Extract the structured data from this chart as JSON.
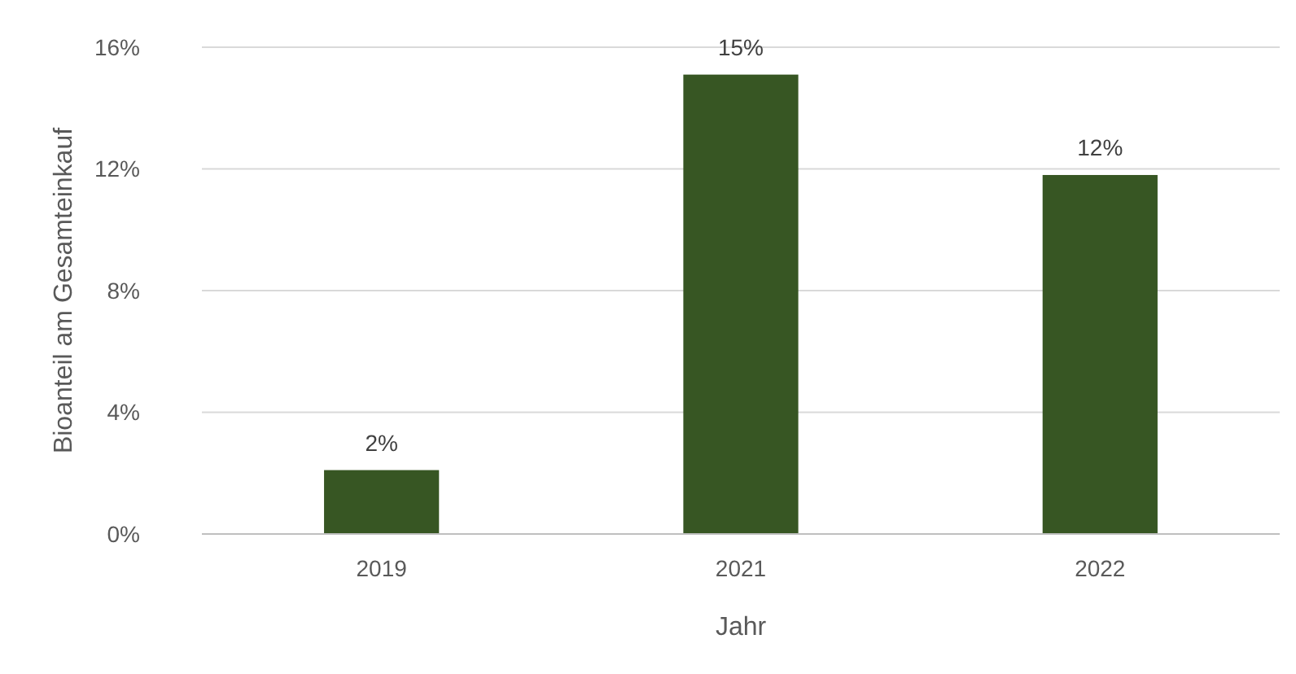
{
  "chart_data": {
    "type": "bar",
    "xlabel": "Jahr",
    "ylabel": "Bioanteil am Gesamteinkauf",
    "categories": [
      "2019",
      "2021",
      "2022"
    ],
    "values": [
      2.1,
      15.1,
      11.8
    ],
    "color": "#375623",
    "value_labels": [
      "2%",
      "15%",
      "12%"
    ],
    "ylim": [
      0,
      16
    ],
    "yticks": [
      {
        "value": 0,
        "label": "0%"
      },
      {
        "value": 4,
        "label": "4%"
      },
      {
        "value": 8,
        "label": "8%"
      },
      {
        "value": 12,
        "label": "12%"
      },
      {
        "value": 16,
        "label": "16%"
      }
    ],
    "grid": "y"
  }
}
